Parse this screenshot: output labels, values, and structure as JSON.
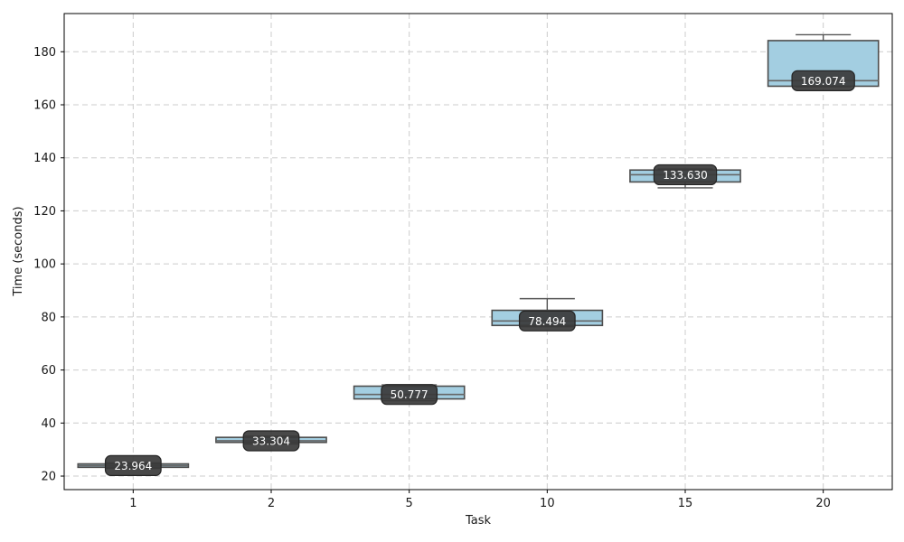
{
  "chart_data": {
    "type": "box",
    "title": "",
    "xlabel": "Task",
    "ylabel": "Time (seconds)",
    "categories": [
      "1",
      "2",
      "5",
      "10",
      "15",
      "20"
    ],
    "yticks": [
      20,
      40,
      60,
      80,
      100,
      120,
      140,
      160,
      180
    ],
    "ylim": [
      14.9,
      194.4
    ],
    "grid": true,
    "legend_position": "none",
    "colors": {
      "box_fill": "#a3cee1",
      "box_edge": "#4d4d4d",
      "median": "#666666",
      "whisker": "#555555",
      "grid": "#cccccc",
      "spine": "#000000",
      "tick_text": "#1a1a1a",
      "label_bg": "#3a3a3a",
      "label_border": "#242424",
      "label_text": "#ffffff"
    },
    "boxes": [
      {
        "category": "1",
        "whislo": 22.9,
        "q1": 23.3,
        "med": 23.964,
        "q3": 24.6,
        "whishi": 25.0,
        "label": "23.964"
      },
      {
        "category": "2",
        "whislo": 32.1,
        "q1": 32.7,
        "med": 33.304,
        "q3": 34.6,
        "whishi": 35.1,
        "label": "33.304"
      },
      {
        "category": "5",
        "whislo": 48.4,
        "q1": 49.1,
        "med": 50.777,
        "q3": 53.9,
        "whishi": 54.4,
        "label": "50.777"
      },
      {
        "category": "10",
        "whislo": 76.3,
        "q1": 76.8,
        "med": 78.494,
        "q3": 82.5,
        "whishi": 86.9,
        "label": "78.494"
      },
      {
        "category": "15",
        "whislo": 128.7,
        "q1": 130.9,
        "med": 133.63,
        "q3": 135.4,
        "whishi": 135.8,
        "label": "133.630"
      },
      {
        "category": "20",
        "whislo": 166.8,
        "q1": 167.0,
        "med": 169.074,
        "q3": 184.2,
        "whishi": 186.4,
        "label": "169.074"
      }
    ]
  }
}
